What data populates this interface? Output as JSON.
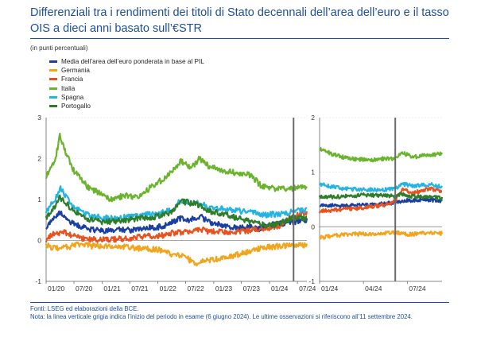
{
  "title": "Differenziali tra i rendimenti dei titoli di Stato decennali dell’area dell’euro e il tasso OIS a dieci anni basato sull’€STR",
  "units_note": "(in punti percentuali)",
  "sources": "Fonti: LSEG ed elaborazioni della BCE.",
  "note": "Nota: la linea verticale grigia indica l’inizio del periodo in esame (6 giugno 2024). Le ultime osservazioni si riferiscono all’11 settembre 2024.",
  "chart_data": [
    {
      "type": "line",
      "x_axis": "time",
      "x_range": [
        "2020-01",
        "2024-09"
      ],
      "x_tick_labels": [
        "01/20",
        "07/20",
        "01/21",
        "07/21",
        "01/22",
        "07/22",
        "01/23",
        "07/23",
        "01/24",
        "07/24"
      ],
      "ylim": [
        -1,
        3
      ],
      "y_tick_labels": [
        "-1",
        "0",
        "1",
        "2",
        "3"
      ],
      "vertical_line": "2024-06-06",
      "legend_position": "top-left",
      "series": [
        {
          "name": "Media dell’area dell’euro ponderata in base al PIL",
          "color": "#1a3fa0",
          "points": [
            [
              "2020-01",
              0.32
            ],
            [
              "2020-03",
              0.6
            ],
            [
              "2020-04",
              0.68
            ],
            [
              "2020-05",
              0.55
            ],
            [
              "2020-07",
              0.4
            ],
            [
              "2020-10",
              0.28
            ],
            [
              "2021-01",
              0.24
            ],
            [
              "2021-04",
              0.26
            ],
            [
              "2021-07",
              0.25
            ],
            [
              "2021-10",
              0.3
            ],
            [
              "2022-01",
              0.32
            ],
            [
              "2022-03",
              0.38
            ],
            [
              "2022-06",
              0.55
            ],
            [
              "2022-08",
              0.5
            ],
            [
              "2022-10",
              0.6
            ],
            [
              "2022-12",
              0.44
            ],
            [
              "2023-03",
              0.38
            ],
            [
              "2023-06",
              0.3
            ],
            [
              "2023-09",
              0.32
            ],
            [
              "2023-11",
              0.28
            ],
            [
              "2024-01",
              0.38
            ],
            [
              "2024-03",
              0.4
            ],
            [
              "2024-06",
              0.45
            ],
            [
              "2024-09",
              0.5
            ]
          ]
        },
        {
          "name": "Germania",
          "color": "#f2a51c",
          "points": [
            [
              "2020-01",
              -0.12
            ],
            [
              "2020-03",
              -0.2
            ],
            [
              "2020-05",
              -0.18
            ],
            [
              "2020-08",
              -0.1
            ],
            [
              "2020-11",
              -0.14
            ],
            [
              "2021-02",
              -0.12
            ],
            [
              "2021-06",
              -0.16
            ],
            [
              "2021-10",
              -0.2
            ],
            [
              "2022-01",
              -0.22
            ],
            [
              "2022-04",
              -0.35
            ],
            [
              "2022-07",
              -0.4
            ],
            [
              "2022-09",
              -0.58
            ],
            [
              "2022-11",
              -0.5
            ],
            [
              "2023-02",
              -0.45
            ],
            [
              "2023-05",
              -0.38
            ],
            [
              "2023-08",
              -0.3
            ],
            [
              "2023-11",
              -0.18
            ],
            [
              "2024-02",
              -0.15
            ],
            [
              "2024-06",
              -0.12
            ],
            [
              "2024-09",
              -0.12
            ]
          ]
        },
        {
          "name": "Francia",
          "color": "#e8521f",
          "points": [
            [
              "2020-01",
              0.02
            ],
            [
              "2020-03",
              0.18
            ],
            [
              "2020-05",
              0.2
            ],
            [
              "2020-08",
              0.06
            ],
            [
              "2020-11",
              0.03
            ],
            [
              "2021-02",
              0.02
            ],
            [
              "2021-06",
              0.04
            ],
            [
              "2021-10",
              0.1
            ],
            [
              "2022-01",
              0.1
            ],
            [
              "2022-04",
              0.18
            ],
            [
              "2022-07",
              0.2
            ],
            [
              "2022-10",
              0.28
            ],
            [
              "2022-12",
              0.22
            ],
            [
              "2023-03",
              0.2
            ],
            [
              "2023-06",
              0.22
            ],
            [
              "2023-09",
              0.25
            ],
            [
              "2023-12",
              0.28
            ],
            [
              "2024-03",
              0.35
            ],
            [
              "2024-06",
              0.6
            ],
            [
              "2024-09",
              0.68
            ]
          ]
        },
        {
          "name": "Italia",
          "color": "#6ab42d",
          "points": [
            [
              "2020-01",
              1.55
            ],
            [
              "2020-03",
              1.95
            ],
            [
              "2020-04",
              2.6
            ],
            [
              "2020-05",
              2.2
            ],
            [
              "2020-07",
              1.7
            ],
            [
              "2020-10",
              1.3
            ],
            [
              "2021-01",
              1.12
            ],
            [
              "2021-03",
              1.0
            ],
            [
              "2021-06",
              1.1
            ],
            [
              "2021-09",
              1.05
            ],
            [
              "2021-12",
              1.35
            ],
            [
              "2022-03",
              1.55
            ],
            [
              "2022-06",
              1.95
            ],
            [
              "2022-08",
              1.75
            ],
            [
              "2022-10",
              2.0
            ],
            [
              "2022-12",
              1.8
            ],
            [
              "2023-03",
              1.7
            ],
            [
              "2023-06",
              1.65
            ],
            [
              "2023-09",
              1.6
            ],
            [
              "2023-11",
              1.35
            ],
            [
              "2024-01",
              1.3
            ],
            [
              "2024-03",
              1.25
            ],
            [
              "2024-06",
              1.28
            ],
            [
              "2024-09",
              1.32
            ]
          ]
        },
        {
          "name": "Spagna",
          "color": "#22b4e3",
          "points": [
            [
              "2020-01",
              0.7
            ],
            [
              "2020-03",
              1.0
            ],
            [
              "2020-04",
              1.3
            ],
            [
              "2020-05",
              1.1
            ],
            [
              "2020-07",
              0.8
            ],
            [
              "2020-10",
              0.62
            ],
            [
              "2021-01",
              0.55
            ],
            [
              "2021-04",
              0.55
            ],
            [
              "2021-07",
              0.58
            ],
            [
              "2021-10",
              0.62
            ],
            [
              "2022-01",
              0.65
            ],
            [
              "2022-04",
              0.75
            ],
            [
              "2022-06",
              0.98
            ],
            [
              "2022-09",
              0.92
            ],
            [
              "2022-12",
              0.82
            ],
            [
              "2023-03",
              0.78
            ],
            [
              "2023-06",
              0.72
            ],
            [
              "2023-09",
              0.7
            ],
            [
              "2023-12",
              0.62
            ],
            [
              "2024-03",
              0.65
            ],
            [
              "2024-06",
              0.7
            ],
            [
              "2024-09",
              0.75
            ]
          ]
        },
        {
          "name": "Portogallo",
          "color": "#2e7d2a",
          "points": [
            [
              "2020-01",
              0.55
            ],
            [
              "2020-03",
              0.85
            ],
            [
              "2020-04",
              1.05
            ],
            [
              "2020-05",
              0.95
            ],
            [
              "2020-07",
              0.7
            ],
            [
              "2020-10",
              0.52
            ],
            [
              "2021-01",
              0.45
            ],
            [
              "2021-04",
              0.48
            ],
            [
              "2021-07",
              0.5
            ],
            [
              "2021-10",
              0.55
            ],
            [
              "2022-01",
              0.58
            ],
            [
              "2022-04",
              0.7
            ],
            [
              "2022-06",
              0.95
            ],
            [
              "2022-09",
              0.9
            ],
            [
              "2022-12",
              0.72
            ],
            [
              "2023-03",
              0.65
            ],
            [
              "2023-06",
              0.55
            ],
            [
              "2023-09",
              0.45
            ],
            [
              "2023-12",
              0.38
            ],
            [
              "2024-03",
              0.4
            ],
            [
              "2024-06",
              0.55
            ],
            [
              "2024-09",
              0.55
            ]
          ]
        }
      ]
    },
    {
      "type": "line",
      "x_axis": "time",
      "x_range": [
        "2024-01-01",
        "2024-09-11"
      ],
      "x_tick_labels": [
        "01/24",
        "04/24",
        "07/24"
      ],
      "ylim": [
        -1,
        2
      ],
      "y_tick_labels": [
        "-1",
        "0",
        "1",
        "2"
      ],
      "vertical_line": "2024-06-06",
      "series": [
        {
          "name": "Media dell’area dell’euro ponderata in base al PIL",
          "color": "#1a3fa0",
          "points": [
            [
              "2024-01-01",
              0.4
            ],
            [
              "2024-02-15",
              0.38
            ],
            [
              "2024-04-01",
              0.4
            ],
            [
              "2024-05-15",
              0.42
            ],
            [
              "2024-06-06",
              0.45
            ],
            [
              "2024-07-01",
              0.48
            ],
            [
              "2024-08-01",
              0.5
            ],
            [
              "2024-09-11",
              0.48
            ]
          ]
        },
        {
          "name": "Germania",
          "color": "#f2a51c",
          "points": [
            [
              "2024-01-01",
              -0.2
            ],
            [
              "2024-02-15",
              -0.15
            ],
            [
              "2024-04-01",
              -0.13
            ],
            [
              "2024-05-15",
              -0.12
            ],
            [
              "2024-06-06",
              -0.1
            ],
            [
              "2024-07-01",
              -0.14
            ],
            [
              "2024-08-01",
              -0.12
            ],
            [
              "2024-09-11",
              -0.12
            ]
          ]
        },
        {
          "name": "Francia",
          "color": "#e8521f",
          "points": [
            [
              "2024-01-01",
              0.28
            ],
            [
              "2024-02-15",
              0.32
            ],
            [
              "2024-04-01",
              0.35
            ],
            [
              "2024-05-15",
              0.4
            ],
            [
              "2024-06-06",
              0.48
            ],
            [
              "2024-06-20",
              0.68
            ],
            [
              "2024-07-15",
              0.62
            ],
            [
              "2024-08-15",
              0.7
            ],
            [
              "2024-09-11",
              0.65
            ]
          ]
        },
        {
          "name": "Italia",
          "color": "#6ab42d",
          "points": [
            [
              "2024-01-01",
              1.42
            ],
            [
              "2024-02-01",
              1.32
            ],
            [
              "2024-03-01",
              1.25
            ],
            [
              "2024-04-15",
              1.22
            ],
            [
              "2024-05-15",
              1.25
            ],
            [
              "2024-06-06",
              1.25
            ],
            [
              "2024-06-20",
              1.35
            ],
            [
              "2024-07-15",
              1.28
            ],
            [
              "2024-08-15",
              1.32
            ],
            [
              "2024-09-11",
              1.33
            ]
          ]
        },
        {
          "name": "Spagna",
          "color": "#22b4e3",
          "points": [
            [
              "2024-01-01",
              0.78
            ],
            [
              "2024-02-15",
              0.7
            ],
            [
              "2024-04-01",
              0.68
            ],
            [
              "2024-05-15",
              0.68
            ],
            [
              "2024-06-06",
              0.7
            ],
            [
              "2024-06-20",
              0.78
            ],
            [
              "2024-07-15",
              0.75
            ],
            [
              "2024-08-15",
              0.78
            ],
            [
              "2024-09-11",
              0.74
            ]
          ]
        },
        {
          "name": "Portogallo",
          "color": "#2e7d2a",
          "points": [
            [
              "2024-01-01",
              0.55
            ],
            [
              "2024-02-15",
              0.55
            ],
            [
              "2024-04-01",
              0.58
            ],
            [
              "2024-05-15",
              0.58
            ],
            [
              "2024-06-06",
              0.55
            ],
            [
              "2024-06-20",
              0.6
            ],
            [
              "2024-07-15",
              0.55
            ],
            [
              "2024-08-15",
              0.55
            ],
            [
              "2024-09-11",
              0.52
            ]
          ]
        }
      ]
    }
  ]
}
